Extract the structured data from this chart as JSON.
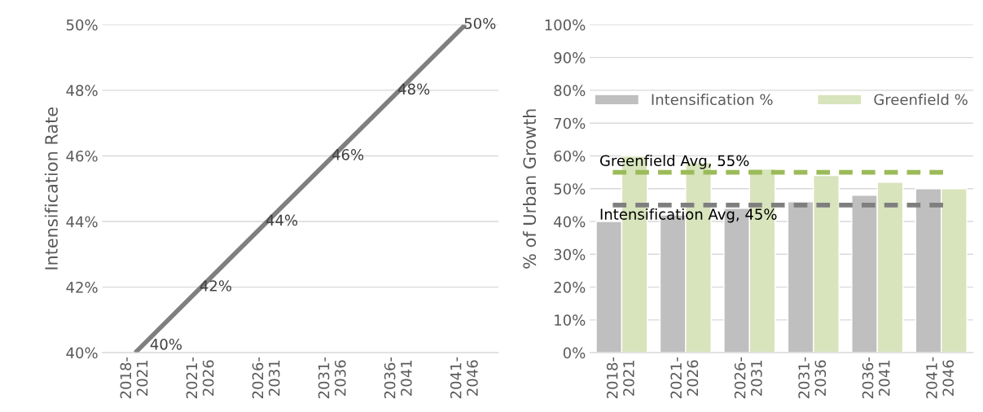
{
  "chart_data": [
    {
      "type": "line",
      "ylabel": "Intensification Rate",
      "categories": [
        "2018-\n2021",
        "2021-\n2026",
        "2026-\n2031",
        "2031-\n2036",
        "2036-\n2041",
        "2041-\n2046"
      ],
      "series": [
        {
          "color": "#7f7f7f",
          "values": [
            40,
            42,
            44,
            46,
            48,
            50
          ],
          "value_labels": [
            "40%",
            "42%",
            "44%",
            "46%",
            "48%",
            "50%"
          ]
        }
      ],
      "ylim": [
        40,
        50
      ],
      "yticks": [
        {
          "value": 40,
          "label": "40%"
        },
        {
          "value": 42,
          "label": "42%"
        },
        {
          "value": 44,
          "label": "44%"
        },
        {
          "value": 46,
          "label": "46%"
        },
        {
          "value": 48,
          "label": "48%"
        },
        {
          "value": 50,
          "label": "50%"
        }
      ],
      "grid": "y",
      "marker": "none",
      "line_style": "solid"
    },
    {
      "type": "bar",
      "ylabel": "% of Urban Growth",
      "categories": [
        "2018-\n2021",
        "2021-\n2026",
        "2026-\n2031",
        "2031-\n2036",
        "2036-\n2041",
        "2041-\n2046"
      ],
      "series": [
        {
          "name": "Intensification %",
          "color": "#bfbfbf",
          "values": [
            40,
            42,
            44,
            46,
            48,
            50
          ]
        },
        {
          "name": "Greenfield %",
          "color": "#d8e4bc",
          "values": [
            60,
            58,
            56,
            54,
            52,
            50
          ]
        }
      ],
      "ylim": [
        0,
        100
      ],
      "yticks": [
        {
          "value": 0,
          "label": "0%"
        },
        {
          "value": 10,
          "label": "10%"
        },
        {
          "value": 20,
          "label": "20%"
        },
        {
          "value": 30,
          "label": "30%"
        },
        {
          "value": 40,
          "label": "40%"
        },
        {
          "value": 50,
          "label": "50%"
        },
        {
          "value": 60,
          "label": "60%"
        },
        {
          "value": 70,
          "label": "70%"
        },
        {
          "value": 80,
          "label": "80%"
        },
        {
          "value": 90,
          "label": "90%"
        },
        {
          "value": 100,
          "label": "100%"
        }
      ],
      "ref_lines": [
        {
          "axis": "y",
          "value": 55,
          "label": "Greenfield Avg, 55%",
          "color": "#9bbb59",
          "line_style": "dashed"
        },
        {
          "axis": "y",
          "value": 45,
          "label": "Intensification Avg, 45%",
          "color": "#7f7f7f",
          "line_style": "dashed"
        }
      ],
      "grid": "y",
      "legend": "top"
    }
  ]
}
